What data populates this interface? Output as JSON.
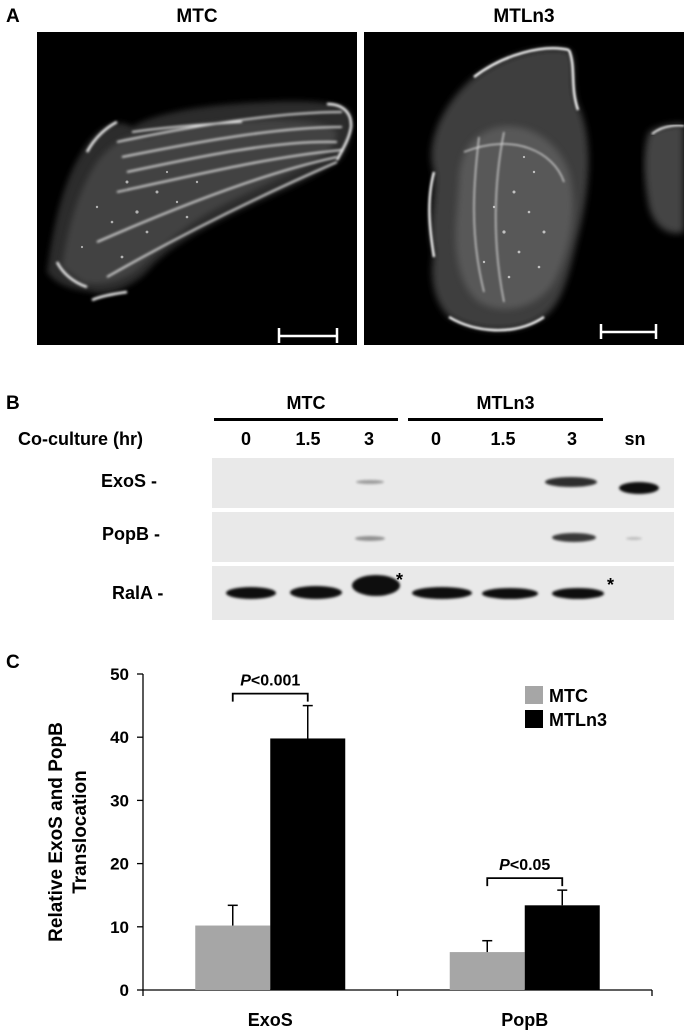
{
  "panel_a": {
    "letter": "A",
    "left_title": "MTC",
    "right_title": "MTLn3"
  },
  "panel_b": {
    "letter": "B",
    "groups": [
      "MTC",
      "MTLn3"
    ],
    "row_label": "Co-culture (hr)",
    "lanes": [
      "0",
      "1.5",
      "3",
      "0",
      "1.5",
      "3",
      "sn"
    ],
    "blots": [
      {
        "label": "ExoS -"
      },
      {
        "label": "PopB -"
      },
      {
        "label": "RalA -"
      }
    ],
    "asterisk": "*"
  },
  "panel_c": {
    "letter": "C",
    "chart_data": {
      "type": "bar",
      "categories": [
        "ExoS",
        "PopB"
      ],
      "series": [
        {
          "name": "MTC",
          "color": "#a6a6a6",
          "values": [
            10.2,
            6.0
          ],
          "errors": [
            3.2,
            1.8
          ]
        },
        {
          "name": "MTLn3",
          "color": "#000000",
          "values": [
            39.8,
            13.4
          ],
          "errors": [
            5.2,
            2.4
          ]
        }
      ],
      "ylabel_line1": "Relative ExoS and PopB",
      "ylabel_line2": "Translocation",
      "ylim": [
        0,
        50
      ],
      "yticks": [
        0,
        10,
        20,
        30,
        40,
        50
      ],
      "grid": false,
      "legend_position": "top-right",
      "annotations": [
        {
          "category": "ExoS",
          "p_symbol": "P",
          "p_rest": "<0.001"
        },
        {
          "category": "PopB",
          "p_symbol": "P",
          "p_rest": "<0.05"
        }
      ]
    }
  }
}
